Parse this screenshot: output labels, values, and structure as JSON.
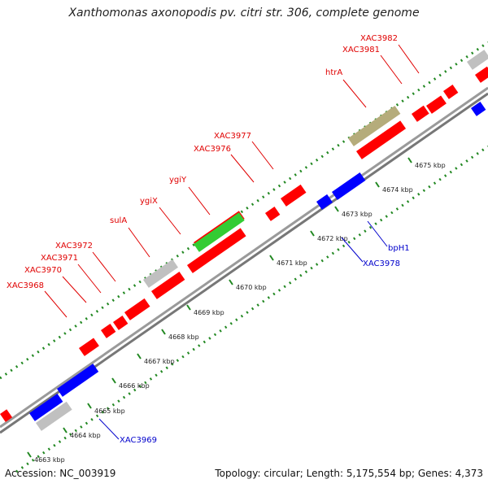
{
  "title": "Xanthomonas axonopodis pv. citri str. 306, complete genome",
  "footer": {
    "accession": "Accession: NC_003919",
    "summary": "Topology: circular; Length: 5,175,554 bp; Genes: 4,373"
  },
  "colors": {
    "forward": "#ff0000",
    "reverse": "#0000ff",
    "rna": "#c0c0c0",
    "green": "#33cc33",
    "khaki": "#b5ac7b",
    "tick": "#228822",
    "backbone": "#999999"
  },
  "scale_labels": [
    "4663 kbp",
    "4664 kbp",
    "4665 kbp",
    "4666 kbp",
    "4667 kbp",
    "4668 kbp",
    "4669 kbp",
    "4670 kbp",
    "4671 kbp",
    "4672 kbp",
    "4673 kbp",
    "4674 kbp",
    "4675 kbp"
  ],
  "forward_labels": [
    "XAC3968",
    "XAC3970",
    "XAC3971",
    "XAC3972",
    "sulA",
    "ygiX",
    "ygiY",
    "XAC3976",
    "XAC3977",
    "htrA",
    "XAC3981",
    "XAC3982"
  ],
  "reverse_labels": [
    "XAC3969",
    "XAC3978",
    "bpH1"
  ]
}
